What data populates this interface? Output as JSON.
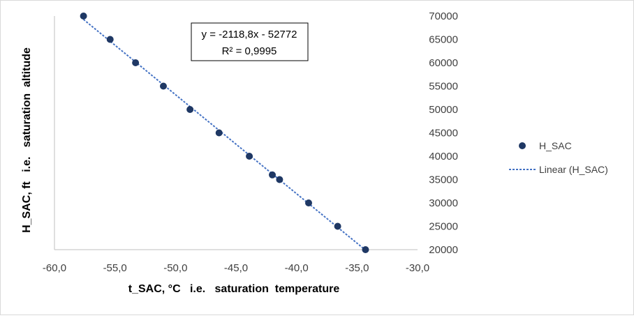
{
  "chart_data": {
    "type": "scatter",
    "xlabel": "t_SAC, °C   i.e.   saturation  temperature",
    "ylabel": "H_SAC, ft   i.e.   saturation  altitude",
    "xlim": [
      -60,
      -30
    ],
    "ylim": [
      20000,
      70000
    ],
    "x_ticks": [
      "-60,0",
      "-55,0",
      "-50,0",
      "-45,0",
      "-40,0",
      "-35,0",
      "-30,0"
    ],
    "y_ticks": [
      "20000",
      "25000",
      "30000",
      "35000",
      "40000",
      "45000",
      "50000",
      "55000",
      "60000",
      "65000",
      "70000"
    ],
    "grid": false,
    "series": [
      {
        "name": "H_SAC",
        "color": "#1f3864",
        "points": [
          {
            "x": -57.6,
            "y": 70000
          },
          {
            "x": -55.4,
            "y": 65000
          },
          {
            "x": -53.3,
            "y": 60000
          },
          {
            "x": -51.0,
            "y": 55000
          },
          {
            "x": -48.8,
            "y": 50000
          },
          {
            "x": -46.4,
            "y": 45000
          },
          {
            "x": -43.9,
            "y": 40000
          },
          {
            "x": -42.0,
            "y": 36000
          },
          {
            "x": -41.4,
            "y": 35000
          },
          {
            "x": -39.0,
            "y": 30000
          },
          {
            "x": -36.6,
            "y": 25000
          },
          {
            "x": -34.3,
            "y": 20000
          }
        ]
      }
    ],
    "trendline": {
      "name": "Linear (H_SAC)",
      "color": "#4472c4",
      "slope": -2118.8,
      "intercept": -52772,
      "x_range": [
        -57.6,
        -34.3
      ],
      "equation": "y = -2118,8x - 52772",
      "r_squared": "R² = 0,9995"
    },
    "legend_position": "right"
  }
}
